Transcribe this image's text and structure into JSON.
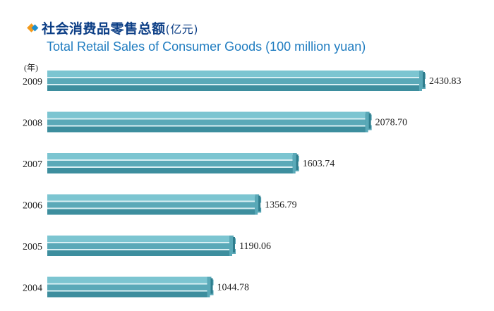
{
  "header": {
    "title_cn": "社会消费品零售总额",
    "title_cn_unit": "(亿元)",
    "title_en": "Total Retail Sales of Consumer Goods (100 million yuan)",
    "bullet_icon": "diamond-bullet-icon"
  },
  "colors": {
    "title_cn": "#0d3f86",
    "title_en": "#1f7cc0",
    "bar_top": "#7cc5d1",
    "bar_mid": "#5aa9b8",
    "bar_bottom": "#3d8e9e",
    "bar_dark": "#2f7d8d",
    "bullet_orange": "#f29a1d",
    "bullet_blue": "#1d8fd0"
  },
  "chart_data": {
    "type": "bar",
    "orientation": "horizontal",
    "title": "Total Retail Sales of Consumer Goods (100 million yuan)",
    "title_cn": "社会消费品零售总额(亿元)",
    "ylabel": "(年)",
    "xlabel": "",
    "categories": [
      "2009",
      "2008",
      "2007",
      "2006",
      "2005",
      "2004"
    ],
    "values": [
      2430.83,
      2078.7,
      1603.74,
      1356.79,
      1190.06,
      1044.78
    ],
    "value_labels": [
      "2430.83",
      "2078.70",
      "1603.74",
      "1356.79",
      "1190.06",
      "1044.78"
    ],
    "xlim": [
      0,
      2500
    ],
    "grid": false,
    "legend": "none"
  }
}
